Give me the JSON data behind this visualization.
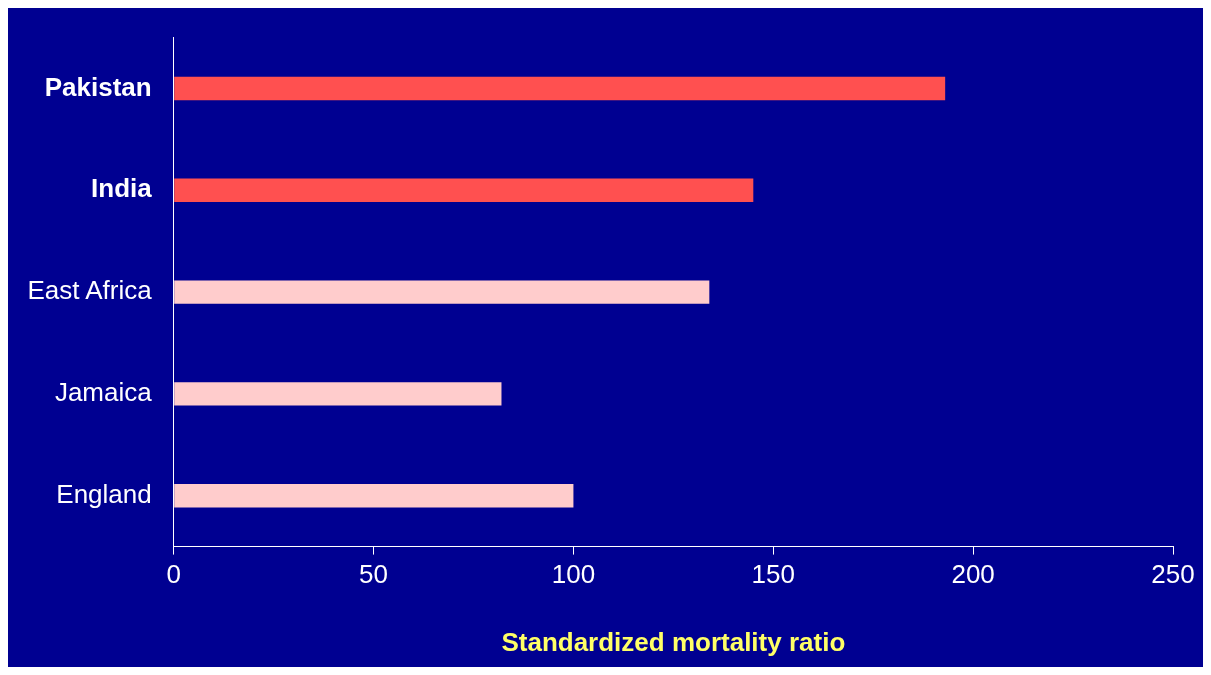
{
  "chart_data": {
    "type": "bar",
    "orientation": "horizontal",
    "xlabel": "Standardized mortality ratio",
    "categories": [
      "Pakistan",
      "India",
      "East Africa",
      "Jamaica",
      "England"
    ],
    "values": [
      193,
      145,
      134,
      82,
      100
    ],
    "colors": [
      "#ff5050",
      "#ff5050",
      "#ffcccc",
      "#ffcccc",
      "#ffcccc"
    ],
    "xlim": [
      0,
      250
    ],
    "xticks": [
      0,
      50,
      100,
      150,
      200,
      250
    ]
  }
}
